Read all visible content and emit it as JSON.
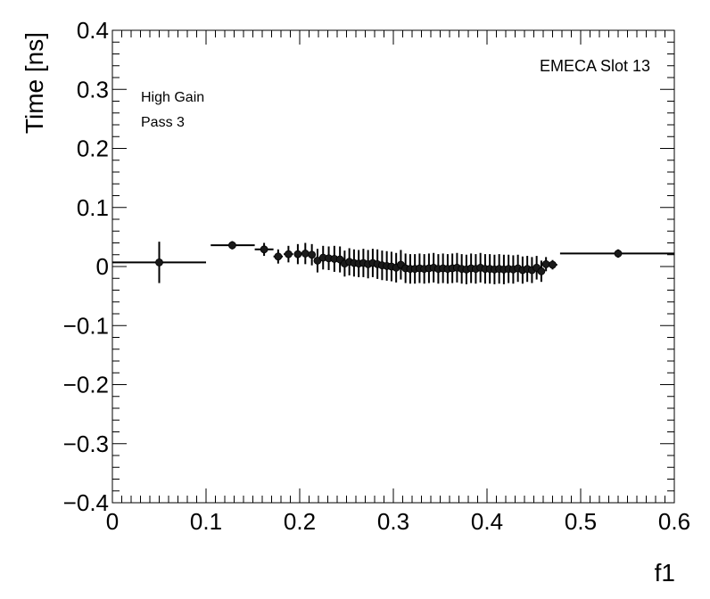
{
  "chart_data": {
    "type": "scatter",
    "title": "",
    "xlabel": "f1",
    "ylabel": "Time [ns]",
    "xlim": [
      0,
      0.6
    ],
    "ylim": [
      -0.4,
      0.4
    ],
    "x_ticks": [
      0,
      0.1,
      0.2,
      0.3,
      0.4,
      0.5,
      0.6
    ],
    "x_tick_labels": [
      "0",
      "0.1",
      "0.2",
      "0.3",
      "0.4",
      "0.5",
      "0.6"
    ],
    "y_ticks": [
      -0.4,
      -0.3,
      -0.2,
      -0.1,
      0,
      0.1,
      0.2,
      0.3,
      0.4
    ],
    "y_tick_labels": [
      "−0.4",
      "−0.3",
      "−0.2",
      "−0.1",
      "0",
      "0.1",
      "0.2",
      "0.3",
      "0.4"
    ],
    "grid": false,
    "annotations": [
      "High Gain",
      "Pass 3",
      "EMECA Slot 13"
    ],
    "series": [
      {
        "points": [
          {
            "x": 0.05,
            "xlo": 0.0,
            "xhi": 0.1,
            "y": 0.007,
            "err": 0.035
          },
          {
            "x": 0.128,
            "xlo": 0.105,
            "xhi": 0.152,
            "y": 0.036,
            "err": 0.007
          },
          {
            "x": 0.162,
            "xlo": 0.152,
            "xhi": 0.172,
            "y": 0.029,
            "err": 0.011
          },
          {
            "x": 0.177,
            "xlo": 0.172,
            "xhi": 0.182,
            "y": 0.017,
            "err": 0.012
          },
          {
            "x": 0.188,
            "xlo": 0.183,
            "xhi": 0.193,
            "y": 0.021,
            "err": 0.014
          },
          {
            "x": 0.198,
            "xlo": 0.194,
            "xhi": 0.202,
            "y": 0.021,
            "err": 0.017
          },
          {
            "x": 0.206,
            "xlo": 0.202,
            "xhi": 0.21,
            "y": 0.022,
            "err": 0.018
          },
          {
            "x": 0.213,
            "xlo": 0.21,
            "xhi": 0.216,
            "y": 0.02,
            "err": 0.018
          },
          {
            "x": 0.219,
            "xlo": 0.216,
            "xhi": 0.222,
            "y": 0.01,
            "err": 0.02
          },
          {
            "x": 0.225,
            "xlo": 0.222,
            "xhi": 0.228,
            "y": 0.015,
            "err": 0.02
          },
          {
            "x": 0.231,
            "xlo": 0.228,
            "xhi": 0.234,
            "y": 0.014,
            "err": 0.02
          },
          {
            "x": 0.237,
            "xlo": 0.234,
            "xhi": 0.24,
            "y": 0.013,
            "err": 0.022
          },
          {
            "x": 0.243,
            "xlo": 0.24,
            "xhi": 0.246,
            "y": 0.012,
            "err": 0.022
          },
          {
            "x": 0.248,
            "xlo": 0.246,
            "xhi": 0.25,
            "y": 0.005,
            "err": 0.022
          },
          {
            "x": 0.253,
            "xlo": 0.25,
            "xhi": 0.256,
            "y": 0.008,
            "err": 0.023
          },
          {
            "x": 0.258,
            "xlo": 0.256,
            "xhi": 0.261,
            "y": 0.006,
            "err": 0.023
          },
          {
            "x": 0.263,
            "xlo": 0.261,
            "xhi": 0.266,
            "y": 0.005,
            "err": 0.023
          },
          {
            "x": 0.268,
            "xlo": 0.266,
            "xhi": 0.271,
            "y": 0.006,
            "err": 0.024
          },
          {
            "x": 0.273,
            "xlo": 0.271,
            "xhi": 0.276,
            "y": 0.004,
            "err": 0.024
          },
          {
            "x": 0.278,
            "xlo": 0.276,
            "xhi": 0.281,
            "y": 0.006,
            "err": 0.024
          },
          {
            "x": 0.283,
            "xlo": 0.281,
            "xhi": 0.286,
            "y": 0.004,
            "err": 0.025
          },
          {
            "x": 0.288,
            "xlo": 0.286,
            "xhi": 0.291,
            "y": 0.002,
            "err": 0.025
          },
          {
            "x": 0.293,
            "xlo": 0.291,
            "xhi": 0.296,
            "y": 0.001,
            "err": 0.025
          },
          {
            "x": 0.298,
            "xlo": 0.296,
            "xhi": 0.301,
            "y": 0.0,
            "err": 0.025
          },
          {
            "x": 0.303,
            "xlo": 0.301,
            "xhi": 0.306,
            "y": -0.002,
            "err": 0.025
          },
          {
            "x": 0.308,
            "xlo": 0.306,
            "xhi": 0.311,
            "y": 0.003,
            "err": 0.025
          },
          {
            "x": 0.313,
            "xlo": 0.311,
            "xhi": 0.316,
            "y": -0.003,
            "err": 0.025
          },
          {
            "x": 0.318,
            "xlo": 0.316,
            "xhi": 0.321,
            "y": -0.004,
            "err": 0.025
          },
          {
            "x": 0.323,
            "xlo": 0.321,
            "xhi": 0.326,
            "y": -0.004,
            "err": 0.025
          },
          {
            "x": 0.328,
            "xlo": 0.326,
            "xhi": 0.331,
            "y": -0.003,
            "err": 0.025
          },
          {
            "x": 0.333,
            "xlo": 0.331,
            "xhi": 0.336,
            "y": -0.004,
            "err": 0.025
          },
          {
            "x": 0.338,
            "xlo": 0.336,
            "xhi": 0.341,
            "y": -0.003,
            "err": 0.025
          },
          {
            "x": 0.343,
            "xlo": 0.341,
            "xhi": 0.346,
            "y": -0.002,
            "err": 0.025
          },
          {
            "x": 0.348,
            "xlo": 0.346,
            "xhi": 0.351,
            "y": -0.004,
            "err": 0.025
          },
          {
            "x": 0.353,
            "xlo": 0.351,
            "xhi": 0.356,
            "y": -0.003,
            "err": 0.025
          },
          {
            "x": 0.358,
            "xlo": 0.356,
            "xhi": 0.361,
            "y": -0.004,
            "err": 0.025
          },
          {
            "x": 0.363,
            "xlo": 0.361,
            "xhi": 0.366,
            "y": -0.003,
            "err": 0.025
          },
          {
            "x": 0.368,
            "xlo": 0.366,
            "xhi": 0.371,
            "y": -0.002,
            "err": 0.025
          },
          {
            "x": 0.373,
            "xlo": 0.371,
            "xhi": 0.376,
            "y": -0.004,
            "err": 0.025
          },
          {
            "x": 0.378,
            "xlo": 0.376,
            "xhi": 0.381,
            "y": -0.005,
            "err": 0.025
          },
          {
            "x": 0.383,
            "xlo": 0.381,
            "xhi": 0.386,
            "y": -0.003,
            "err": 0.025
          },
          {
            "x": 0.388,
            "xlo": 0.386,
            "xhi": 0.391,
            "y": -0.004,
            "err": 0.025
          },
          {
            "x": 0.393,
            "xlo": 0.391,
            "xhi": 0.396,
            "y": -0.002,
            "err": 0.025
          },
          {
            "x": 0.398,
            "xlo": 0.396,
            "xhi": 0.401,
            "y": -0.004,
            "err": 0.025
          },
          {
            "x": 0.403,
            "xlo": 0.401,
            "xhi": 0.406,
            "y": -0.004,
            "err": 0.025
          },
          {
            "x": 0.408,
            "xlo": 0.406,
            "xhi": 0.411,
            "y": -0.005,
            "err": 0.025
          },
          {
            "x": 0.413,
            "xlo": 0.411,
            "xhi": 0.416,
            "y": -0.004,
            "err": 0.025
          },
          {
            "x": 0.418,
            "xlo": 0.416,
            "xhi": 0.421,
            "y": -0.005,
            "err": 0.025
          },
          {
            "x": 0.423,
            "xlo": 0.421,
            "xhi": 0.426,
            "y": -0.004,
            "err": 0.024
          },
          {
            "x": 0.428,
            "xlo": 0.426,
            "xhi": 0.431,
            "y": -0.005,
            "err": 0.024
          },
          {
            "x": 0.433,
            "xlo": 0.431,
            "xhi": 0.436,
            "y": -0.003,
            "err": 0.023
          },
          {
            "x": 0.438,
            "xlo": 0.436,
            "xhi": 0.441,
            "y": -0.006,
            "err": 0.023
          },
          {
            "x": 0.443,
            "xlo": 0.441,
            "xhi": 0.446,
            "y": -0.004,
            "err": 0.022
          },
          {
            "x": 0.448,
            "xlo": 0.446,
            "xhi": 0.451,
            "y": -0.006,
            "err": 0.022
          },
          {
            "x": 0.453,
            "xlo": 0.451,
            "xhi": 0.456,
            "y": -0.002,
            "err": 0.02
          },
          {
            "x": 0.458,
            "xlo": 0.456,
            "xhi": 0.461,
            "y": -0.008,
            "err": 0.018
          },
          {
            "x": 0.463,
            "xlo": 0.461,
            "xhi": 0.466,
            "y": 0.004,
            "err": 0.012
          },
          {
            "x": 0.47,
            "xlo": 0.466,
            "xhi": 0.475,
            "y": 0.003,
            "err": 0.008
          },
          {
            "x": 0.54,
            "xlo": 0.478,
            "xhi": 0.6,
            "y": 0.022,
            "err": 0.007
          }
        ]
      }
    ]
  }
}
